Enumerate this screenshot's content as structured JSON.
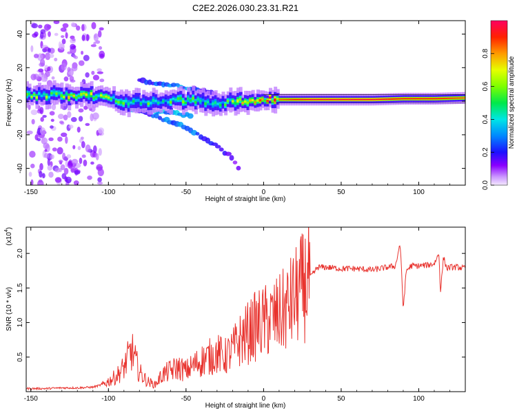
{
  "chart_data": [
    {
      "type": "heatmap",
      "title": "C2E2.2026.030.23.31.R21",
      "xlabel": "Height of straight line (km)",
      "ylabel": "Frequency (Hz)",
      "xlim": [
        -153,
        130
      ],
      "ylim": [
        -50,
        48
      ],
      "xticks": [
        -150,
        -100,
        -50,
        0,
        50,
        100
      ],
      "yticks": [
        40,
        20,
        0,
        -20,
        -40
      ],
      "xtick_labels": [
        "-150",
        "-100",
        "-50",
        "0",
        "50",
        "100"
      ],
      "ytick_labels": [
        "40",
        "20",
        "0",
        "-20",
        "-40"
      ],
      "colorbar": {
        "label": "Normalized spectral amplitude",
        "range": [
          0,
          1
        ],
        "ticks": [
          0.0,
          0.2,
          0.4,
          0.6,
          0.8
        ],
        "tick_labels": [
          "0.0",
          "0.2",
          "0.4",
          "0.6",
          "0.8"
        ]
      },
      "ridge": {
        "x": [
          -153,
          -140,
          -130,
          -120,
          -110,
          -100,
          -90,
          -80,
          -70,
          -60,
          -50,
          -40,
          -30,
          -25,
          -20,
          -10,
          0,
          10,
          20,
          30,
          50,
          70,
          90,
          110,
          130
        ],
        "freq": [
          3,
          3.5,
          4,
          3.5,
          3,
          2,
          0,
          -1,
          0,
          0,
          0.5,
          0,
          -1.5,
          -1.5,
          0,
          0.5,
          0.5,
          1,
          1,
          1,
          1,
          1,
          1.5,
          1.5,
          2
        ],
        "amplitude": [
          0.55,
          0.6,
          0.7,
          0.65,
          0.6,
          0.55,
          0.5,
          0.55,
          0.5,
          0.5,
          0.55,
          0.5,
          0.4,
          0.5,
          0.6,
          0.75,
          0.8,
          0.85,
          0.9,
          0.95,
          0.95,
          0.95,
          0.9,
          0.9,
          0.85
        ]
      },
      "branches": [
        {
          "x": [
            -100,
            -90,
            -80,
            -70,
            -60,
            -50,
            -45
          ],
          "freq": [
            -2,
            -4,
            -5,
            -6,
            -7,
            -8,
            -9
          ],
          "amplitude": [
            0.3,
            0.35,
            0.4,
            0.4,
            0.35,
            0.3,
            0.25
          ]
        },
        {
          "x": [
            -80,
            -70,
            -60,
            -50,
            -40,
            -30,
            -20,
            -16
          ],
          "freq": [
            -6,
            -9,
            -12,
            -16,
            -21,
            -27,
            -34,
            -40
          ],
          "amplitude": [
            0.2,
            0.25,
            0.3,
            0.3,
            0.25,
            0.2,
            0.15,
            0.12
          ]
        },
        {
          "x": [
            -80,
            -70,
            -60,
            -50,
            -40,
            -30
          ],
          "freq": [
            12,
            11,
            10,
            8,
            6,
            4
          ],
          "amplitude": [
            0.2,
            0.25,
            0.3,
            0.3,
            0.2,
            0.15
          ]
        }
      ]
    },
    {
      "type": "line",
      "title": "",
      "xlabel": "Height of straight line (km)",
      "ylabel": "SNR (10 * v/v)",
      "scale_label": "(x10",
      "scale_exponent": "4",
      "scale_suffix": ")",
      "xlim": [
        -153,
        130
      ],
      "ylim": [
        0,
        2.38
      ],
      "xticks": [
        -150,
        -100,
        -50,
        0,
        50,
        100
      ],
      "yticks": [
        0.5,
        1.0,
        1.5,
        2.0
      ],
      "xtick_labels": [
        "-150",
        "-100",
        "-50",
        "0",
        "50",
        "100"
      ],
      "ytick_labels": [
        "0.5",
        "1.0",
        "1.5",
        "2.0"
      ],
      "color": "#e8322d",
      "series": [
        {
          "name": "SNR",
          "x": [
            -153,
            -140,
            -130,
            -120,
            -110,
            -105,
            -100,
            -95,
            -90,
            -85,
            -80,
            -75,
            -70,
            -65,
            -60,
            -55,
            -50,
            -45,
            -40,
            -35,
            -30,
            -25,
            -20,
            -15,
            -10,
            -5,
            0,
            5,
            10,
            15,
            20,
            25,
            30,
            35,
            40,
            50,
            60,
            70,
            80,
            85,
            88,
            90,
            92,
            95,
            100,
            105,
            110,
            113,
            114,
            116,
            118,
            120,
            125,
            130
          ],
          "y": [
            0.03,
            0.03,
            0.04,
            0.04,
            0.05,
            0.08,
            0.15,
            0.22,
            0.35,
            0.6,
            0.28,
            0.15,
            0.1,
            0.25,
            0.3,
            0.35,
            0.3,
            0.38,
            0.45,
            0.5,
            0.55,
            0.5,
            0.6,
            0.75,
            0.85,
            0.95,
            1.0,
            1.05,
            1.1,
            1.2,
            1.35,
            1.5,
            1.65,
            1.8,
            1.8,
            1.78,
            1.78,
            1.76,
            1.8,
            1.82,
            2.15,
            1.2,
            1.75,
            1.82,
            1.82,
            1.83,
            1.85,
            2.0,
            1.45,
            1.95,
            1.78,
            1.8,
            1.8,
            1.78
          ]
        }
      ]
    }
  ]
}
